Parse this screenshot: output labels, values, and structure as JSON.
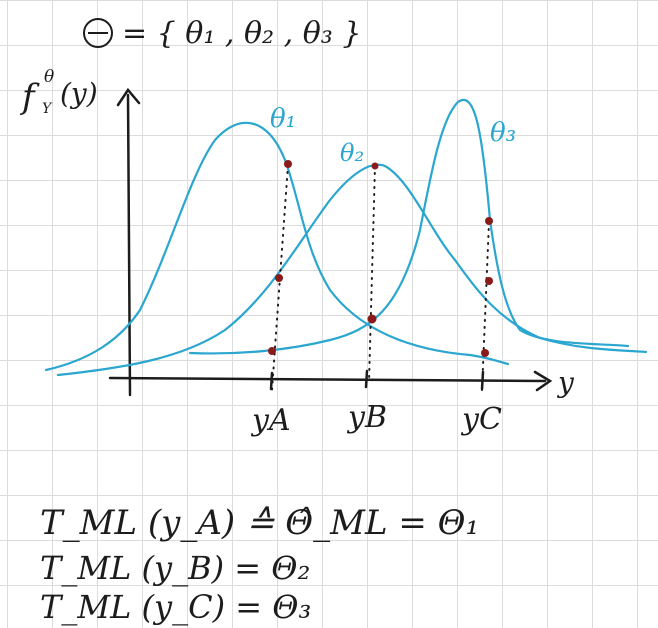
{
  "header": {
    "set_symbol": "Θ",
    "set_eq": "= { θ₁ , θ₂ , θ₃ }"
  },
  "axes": {
    "y_label": "f",
    "y_label_sup": "θ",
    "y_label_sub": "Y",
    "y_label_arg": "(y)",
    "x_label": "y"
  },
  "curves": [
    {
      "name": "θ₁",
      "color": "#2aa6cf"
    },
    {
      "name": "θ₂",
      "color": "#2aa6cf"
    },
    {
      "name": "θ₃",
      "color": "#2aa6cf"
    }
  ],
  "observations": [
    "y_A",
    "y_B",
    "y_C"
  ],
  "ticks": {
    "a": "yA",
    "b": "yB",
    "c": "yC"
  },
  "equations": {
    "line1": "T_ML (y_A) ≙ Θ̂_ML = Θ₁",
    "line2": "T_ML (y_B) = Θ₂",
    "line3": "T_ML (y_C) = Θ₃"
  },
  "colors": {
    "curve": "#2aa6cf",
    "ink": "#1c1c1c",
    "point": "#8b1a1a",
    "grid": "#dcdcdc"
  }
}
